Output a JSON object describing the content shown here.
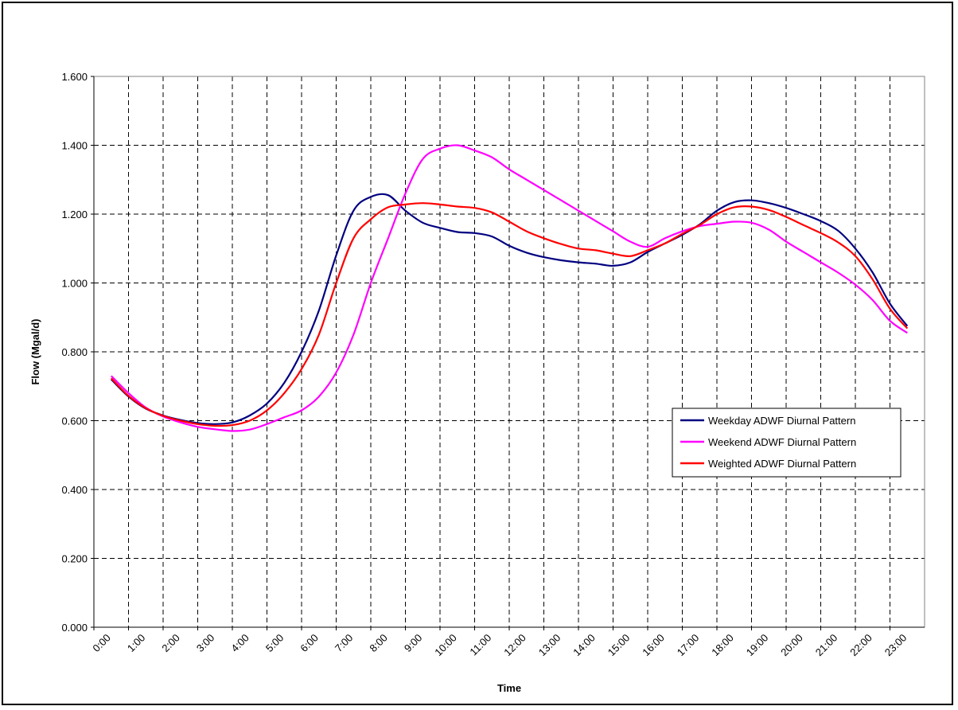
{
  "chart_data": {
    "type": "line",
    "title": "",
    "xlabel": "Time",
    "ylabel": "Flow (Mgal/d)",
    "ylim": [
      0,
      1.6
    ],
    "xlim": [
      0,
      24
    ],
    "yticks": [
      "0.000",
      "0.200",
      "0.400",
      "0.600",
      "0.800",
      "1.000",
      "1.200",
      "1.400",
      "1.600"
    ],
    "xticks": [
      "0:00",
      "1:00",
      "2:00",
      "3:00",
      "4:00",
      "5:00",
      "6:00",
      "7:00",
      "8:00",
      "9:00",
      "10:00",
      "11:00",
      "12:00",
      "13:00",
      "14:00",
      "15:00",
      "16:00",
      "17:00",
      "18:00",
      "19:00",
      "20:00",
      "21:00",
      "22:00",
      "23:00"
    ],
    "grid": true,
    "legend_position": "right",
    "x": [
      0.5,
      1.0,
      1.5,
      2.0,
      2.5,
      3.0,
      3.5,
      4.0,
      4.5,
      5.0,
      5.5,
      6.0,
      6.5,
      7.0,
      7.5,
      8.0,
      8.5,
      9.0,
      9.5,
      10.0,
      10.5,
      11.0,
      11.5,
      12.0,
      12.5,
      13.0,
      13.5,
      14.0,
      14.5,
      15.0,
      15.5,
      16.0,
      16.5,
      17.0,
      17.5,
      18.0,
      18.5,
      19.0,
      19.5,
      20.0,
      20.5,
      21.0,
      21.5,
      22.0,
      22.5,
      23.0,
      23.5
    ],
    "series": [
      {
        "name": "Weekday ADWF Diurnal Pattern",
        "color": "#000080",
        "values": [
          0.72,
          0.67,
          0.635,
          0.615,
          0.602,
          0.593,
          0.59,
          0.595,
          0.615,
          0.65,
          0.71,
          0.8,
          0.92,
          1.08,
          1.21,
          1.25,
          1.255,
          1.21,
          1.175,
          1.16,
          1.148,
          1.145,
          1.135,
          1.108,
          1.088,
          1.075,
          1.066,
          1.06,
          1.056,
          1.05,
          1.06,
          1.09,
          1.115,
          1.14,
          1.17,
          1.21,
          1.235,
          1.24,
          1.232,
          1.218,
          1.2,
          1.18,
          1.152,
          1.1,
          1.03,
          0.94,
          0.875
        ]
      },
      {
        "name": "Weekend ADWF Diurnal Pattern",
        "color": "#FF00FF",
        "values": [
          0.73,
          0.68,
          0.638,
          0.612,
          0.595,
          0.582,
          0.575,
          0.57,
          0.574,
          0.59,
          0.61,
          0.63,
          0.67,
          0.74,
          0.85,
          1.0,
          1.13,
          1.26,
          1.36,
          1.39,
          1.4,
          1.385,
          1.365,
          1.33,
          1.3,
          1.27,
          1.24,
          1.21,
          1.18,
          1.15,
          1.12,
          1.105,
          1.13,
          1.15,
          1.165,
          1.172,
          1.178,
          1.175,
          1.155,
          1.12,
          1.09,
          1.06,
          1.03,
          0.995,
          0.95,
          0.89,
          0.855
        ]
      },
      {
        "name": "Weighted ADWF Diurnal Pattern",
        "color": "#FF0000",
        "values": [
          0.723,
          0.672,
          0.636,
          0.614,
          0.6,
          0.59,
          0.585,
          0.587,
          0.6,
          0.63,
          0.68,
          0.75,
          0.85,
          1.0,
          1.13,
          1.185,
          1.22,
          1.228,
          1.232,
          1.228,
          1.222,
          1.218,
          1.205,
          1.178,
          1.15,
          1.13,
          1.113,
          1.1,
          1.095,
          1.085,
          1.078,
          1.095,
          1.115,
          1.143,
          1.168,
          1.2,
          1.22,
          1.222,
          1.212,
          1.192,
          1.168,
          1.145,
          1.118,
          1.078,
          1.01,
          0.925,
          0.868
        ]
      }
    ]
  }
}
